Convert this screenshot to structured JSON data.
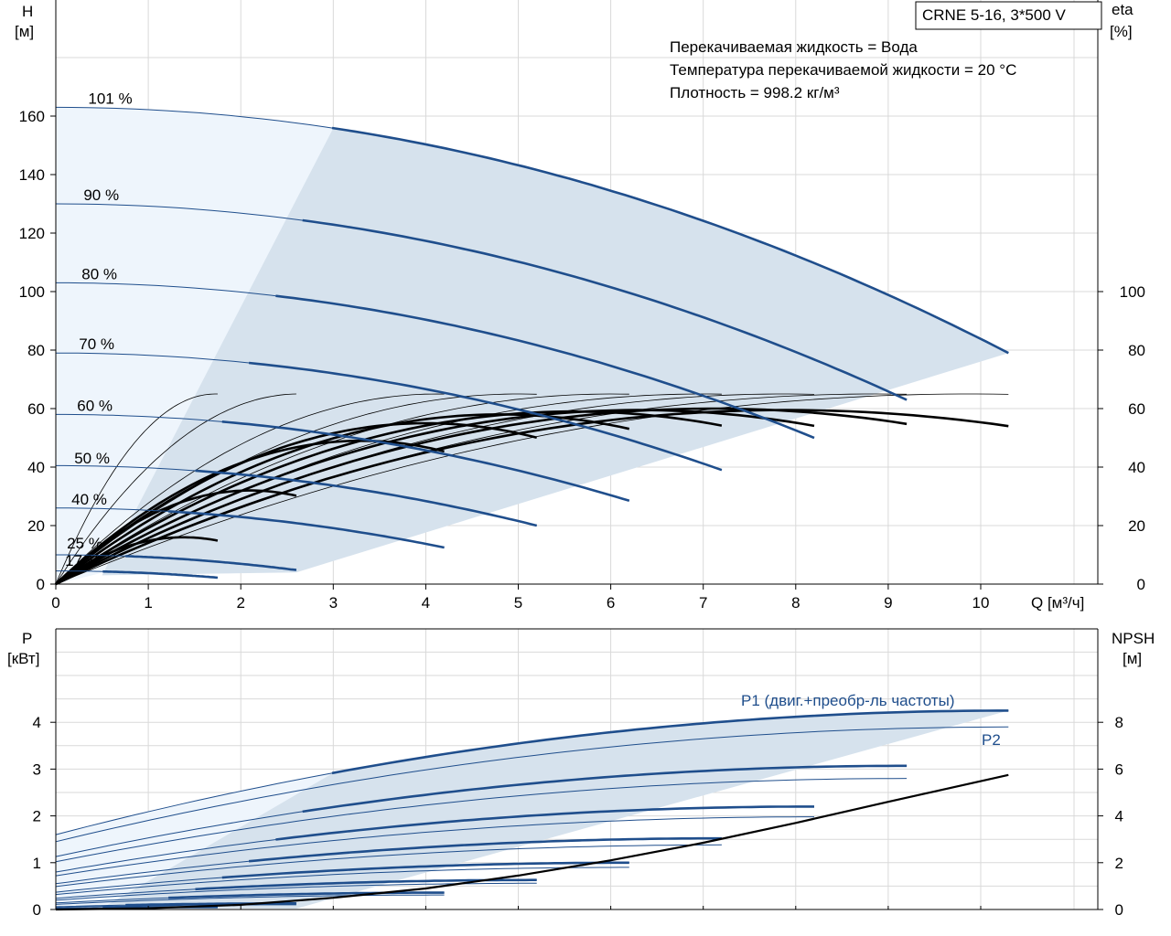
{
  "chart_data": [
    {
      "type": "line",
      "model_label": "CRNE 5-16, 3*500 V",
      "info": [
        "Перекачиваемая жидкость = Вода",
        "Температура перекачиваемой жидкости = 20 °C",
        "Плотность = 998.2 кг/м³"
      ],
      "xlabel": "Q [м³/ч]",
      "ylabel_left": [
        "H",
        "[м]"
      ],
      "ylabel_right": [
        "eta",
        "[%]"
      ],
      "xlim": [
        0,
        11.2
      ],
      "ylim": [
        0,
        200
      ],
      "x_ticks": [
        0,
        1,
        2,
        3,
        4,
        5,
        6,
        7,
        8,
        9,
        10
      ],
      "y_ticks_left": [
        0,
        20,
        40,
        60,
        80,
        100,
        120,
        140,
        160
      ],
      "y_ticks_right": [
        0,
        20,
        40,
        60,
        80,
        100
      ],
      "gridlines": true,
      "head_curves": [
        {
          "name": "101 %",
          "h0": 163,
          "qmax": 10.3,
          "hend": 79,
          "label_pos": [
            0.35,
            163
          ]
        },
        {
          "name": "90 %",
          "h0": 130,
          "qmax": 9.2,
          "hend": 63,
          "label_pos": [
            0.3,
            130
          ]
        },
        {
          "name": "80 %",
          "h0": 103,
          "qmax": 8.2,
          "hend": 50,
          "label_pos": [
            0.28,
            103
          ]
        },
        {
          "name": "70 %",
          "h0": 79,
          "qmax": 7.2,
          "hend": 39,
          "label_pos": [
            0.25,
            79
          ]
        },
        {
          "name": "60 %",
          "h0": 58,
          "qmax": 6.2,
          "hend": 28.5,
          "label_pos": [
            0.23,
            58
          ]
        },
        {
          "name": "50 %",
          "h0": 40.5,
          "qmax": 5.2,
          "hend": 20,
          "label_pos": [
            0.2,
            40
          ]
        },
        {
          "name": "40 %",
          "h0": 26,
          "qmax": 4.2,
          "hend": 12.5,
          "label_pos": [
            0.17,
            26
          ]
        },
        {
          "name": "25 %",
          "h0": 10,
          "qmax": 2.6,
          "hend": 4.8,
          "label_pos": [
            0.12,
            11
          ]
        },
        {
          "name": "17 %",
          "h0": 4.5,
          "qmax": 1.75,
          "hend": 2.2,
          "label_pos": [
            0.1,
            5
          ]
        }
      ],
      "efficiency_curves": [
        {
          "qpeak": 1.38,
          "peak": 16,
          "qmax": 1.75,
          "end": 14.5
        },
        {
          "qpeak": 2.1,
          "peak": 32,
          "qmax": 2.6,
          "end": 28
        },
        {
          "qpeak": 3.3,
          "peak": 49,
          "qmax": 4.2,
          "end": 42
        },
        {
          "qpeak": 4.0,
          "peak": 55,
          "qmax": 5.2,
          "end": 46
        },
        {
          "qpeak": 4.8,
          "peak": 58,
          "qmax": 6.2,
          "end": 49
        },
        {
          "qpeak": 5.6,
          "peak": 59,
          "qmax": 7.2,
          "end": 50
        },
        {
          "qpeak": 6.3,
          "peak": 59.5,
          "qmax": 8.2,
          "end": 51
        },
        {
          "qpeak": 7.1,
          "peak": 60,
          "qmax": 9.2,
          "end": 51
        },
        {
          "qpeak": 7.9,
          "peak": 59.5,
          "qmax": 10.3,
          "end": 51.5
        }
      ]
    },
    {
      "type": "line",
      "xlim": [
        0,
        11.2
      ],
      "ylabel_left": [
        "P",
        "[кВт]"
      ],
      "ylabel_right": [
        "NPSH",
        "[м]"
      ],
      "y_ticks_left": [
        0,
        1,
        2,
        3,
        4
      ],
      "y_ticks_right": [
        0,
        2,
        4,
        6,
        8
      ],
      "ylim_left": [
        0,
        5
      ],
      "ylim_right": [
        0,
        10
      ],
      "gridlines": true,
      "series_labels": {
        "p1": "P1 (двиг.+преобр-ль частоты)",
        "p2": "P2"
      },
      "p1_curves": [
        {
          "p0": 1.6,
          "qmax": 10.3,
          "pend": 4.25
        },
        {
          "p0": 1.13,
          "qmax": 9.2,
          "pend": 3.07
        },
        {
          "p0": 0.8,
          "qmax": 8.2,
          "pend": 2.2
        },
        {
          "p0": 0.55,
          "qmax": 7.2,
          "pend": 1.52
        },
        {
          "p0": 0.37,
          "qmax": 6.2,
          "pend": 1.0
        },
        {
          "p0": 0.24,
          "qmax": 5.2,
          "pend": 0.63
        },
        {
          "p0": 0.14,
          "qmax": 4.2,
          "pend": 0.36
        },
        {
          "p0": 0.06,
          "qmax": 2.6,
          "pend": 0.13
        },
        {
          "p0": 0.03,
          "qmax": 1.75,
          "pend": 0.05
        }
      ],
      "p2_curves": [
        {
          "p0": 1.45,
          "qmax": 10.3,
          "pend": 3.9
        },
        {
          "p0": 1.02,
          "qmax": 9.2,
          "pend": 2.8
        },
        {
          "p0": 0.72,
          "qmax": 8.2,
          "pend": 1.98
        },
        {
          "p0": 0.49,
          "qmax": 7.2,
          "pend": 1.38
        },
        {
          "p0": 0.32,
          "qmax": 6.2,
          "pend": 0.9
        },
        {
          "p0": 0.2,
          "qmax": 5.2,
          "pend": 0.56
        },
        {
          "p0": 0.11,
          "qmax": 4.2,
          "pend": 0.31
        },
        {
          "p0": 0.05,
          "qmax": 2.6,
          "pend": 0.1
        },
        {
          "p0": 0.02,
          "qmax": 1.75,
          "pend": 0.04
        }
      ],
      "npsh_curve": {
        "x": [
          0,
          1,
          2,
          3,
          4,
          5,
          6,
          7,
          8,
          9,
          10.3
        ],
        "y": [
          0,
          0.05,
          0.2,
          0.5,
          0.9,
          1.45,
          2.1,
          2.85,
          3.7,
          4.6,
          5.75
        ]
      }
    }
  ]
}
